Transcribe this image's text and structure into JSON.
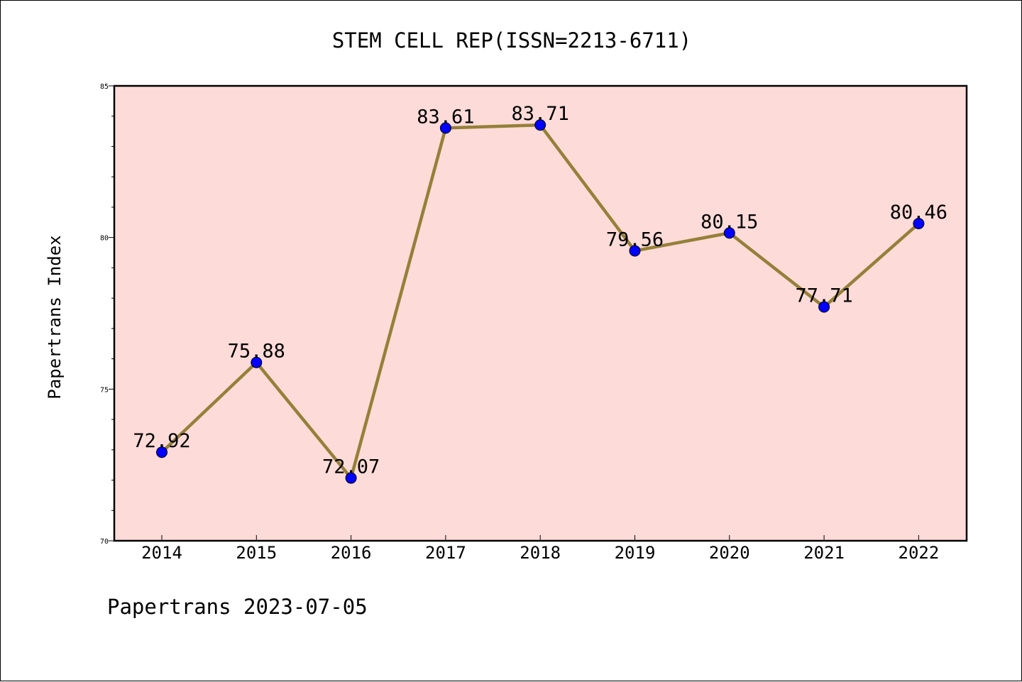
{
  "chart_data": {
    "type": "line",
    "title": "STEM CELL REP(ISSN=2213-6711)",
    "ylabel": "Papertrans Index",
    "xlabel": "",
    "categories": [
      "2014",
      "2015",
      "2016",
      "2017",
      "2018",
      "2019",
      "2020",
      "2021",
      "2022"
    ],
    "series": [
      {
        "values": [
          72.92,
          75.88,
          72.07,
          83.61,
          83.71,
          79.56,
          80.15,
          77.71,
          80.46
        ],
        "labels": [
          "72.92",
          "75.88",
          "72.07",
          "83.61",
          "83.71",
          "79.56",
          "80.15",
          "77.71",
          "80.46"
        ]
      }
    ],
    "ylim": [
      70,
      85
    ],
    "yticks": [
      "70",
      "75",
      "80",
      "85"
    ],
    "grid": false,
    "legend": "none"
  },
  "footer": "Papertrans 2023-07-05",
  "colors": {
    "plot_background": "#fddbd8",
    "line": "#948038",
    "marker": "#0000ff"
  }
}
